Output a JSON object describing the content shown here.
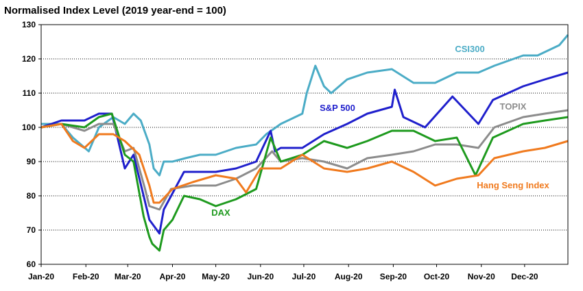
{
  "chart_data": {
    "type": "line",
    "title": "Normalised Index Level (2019 year-end = 100)",
    "xlabel": "",
    "ylabel": "",
    "ylim": [
      60,
      130
    ],
    "yticks": [
      60,
      70,
      80,
      90,
      100,
      110,
      120,
      130
    ],
    "x_tick_labels": [
      "Jan-20",
      "Feb-20",
      "Mar-20",
      "Apr-20",
      "May-20",
      "Jun-20",
      "Jul-20",
      "Aug-20",
      "Sep-20",
      "Oct-20",
      "Nov-20",
      "Dec-20"
    ],
    "grid": "horizontal-dotted",
    "legend": "direct-labels",
    "series": [
      {
        "name": "CSI300",
        "color": "#4BACC6",
        "x": [
          "2020-01-01",
          "2020-01-15",
          "2020-01-23",
          "2020-02-03",
          "2020-02-10",
          "2020-02-20",
          "2020-02-28",
          "2020-03-05",
          "2020-03-10",
          "2020-03-16",
          "2020-03-19",
          "2020-03-23",
          "2020-03-26",
          "2020-04-01",
          "2020-04-10",
          "2020-04-20",
          "2020-05-01",
          "2020-05-15",
          "2020-05-29",
          "2020-06-05",
          "2020-06-15",
          "2020-06-30",
          "2020-07-03",
          "2020-07-09",
          "2020-07-15",
          "2020-07-20",
          "2020-07-31",
          "2020-08-14",
          "2020-08-31",
          "2020-09-15",
          "2020-09-30",
          "2020-10-15",
          "2020-10-30",
          "2020-11-10",
          "2020-11-30",
          "2020-12-10",
          "2020-12-25",
          "2020-12-31"
        ],
        "values": [
          101,
          101,
          97,
          93,
          100,
          103,
          101,
          104,
          102,
          95,
          88,
          86,
          90,
          90,
          91,
          92,
          92,
          94,
          95,
          98,
          101,
          104,
          110,
          118,
          112,
          110,
          114,
          116,
          117,
          113,
          113,
          116,
          116,
          118,
          121,
          121,
          124,
          127
        ]
      },
      {
        "name": "S&P 500",
        "color": "#1F1FCC",
        "x": [
          "2020-01-01",
          "2020-01-15",
          "2020-01-31",
          "2020-02-10",
          "2020-02-19",
          "2020-02-28",
          "2020-03-05",
          "2020-03-12",
          "2020-03-16",
          "2020-03-23",
          "2020-03-26",
          "2020-04-09",
          "2020-04-20",
          "2020-05-01",
          "2020-05-15",
          "2020-05-29",
          "2020-06-08",
          "2020-06-11",
          "2020-06-15",
          "2020-06-30",
          "2020-07-15",
          "2020-07-31",
          "2020-08-14",
          "2020-08-31",
          "2020-09-02",
          "2020-09-08",
          "2020-09-23",
          "2020-10-12",
          "2020-10-30",
          "2020-11-09",
          "2020-11-30",
          "2020-12-15",
          "2020-12-31"
        ],
        "values": [
          100,
          102,
          102,
          104,
          104,
          88,
          92,
          80,
          73,
          69,
          76,
          87,
          87,
          87,
          88,
          90,
          99,
          93,
          94,
          94,
          98,
          101,
          104,
          106,
          111,
          103,
          100,
          109,
          101,
          108,
          112,
          114,
          116
        ]
      },
      {
        "name": "TOPIX",
        "color": "#8C8C8C",
        "x": [
          "2020-01-01",
          "2020-01-15",
          "2020-01-31",
          "2020-02-10",
          "2020-02-20",
          "2020-02-28",
          "2020-03-05",
          "2020-03-13",
          "2020-03-16",
          "2020-03-23",
          "2020-03-31",
          "2020-04-15",
          "2020-05-01",
          "2020-05-15",
          "2020-05-29",
          "2020-06-09",
          "2020-06-15",
          "2020-06-30",
          "2020-07-15",
          "2020-07-31",
          "2020-08-14",
          "2020-08-31",
          "2020-09-15",
          "2020-09-30",
          "2020-10-15",
          "2020-10-30",
          "2020-11-10",
          "2020-11-30",
          "2020-12-15",
          "2020-12-31"
        ],
        "values": [
          100,
          101,
          99,
          101,
          101,
          93,
          94,
          82,
          77,
          76,
          82,
          83,
          83,
          85,
          88,
          93,
          90,
          91,
          90,
          88,
          91,
          92,
          93,
          95,
          95,
          94,
          100,
          103,
          104,
          105
        ]
      },
      {
        "name": "DAX",
        "color": "#1E9A1E",
        "x": [
          "2020-01-01",
          "2020-01-15",
          "2020-01-31",
          "2020-02-10",
          "2020-02-19",
          "2020-02-28",
          "2020-03-05",
          "2020-03-12",
          "2020-03-16",
          "2020-03-18",
          "2020-03-23",
          "2020-03-26",
          "2020-04-01",
          "2020-04-09",
          "2020-04-20",
          "2020-05-01",
          "2020-05-15",
          "2020-05-29",
          "2020-06-08",
          "2020-06-15",
          "2020-06-30",
          "2020-07-15",
          "2020-07-31",
          "2020-08-14",
          "2020-08-31",
          "2020-09-15",
          "2020-09-30",
          "2020-10-15",
          "2020-10-28",
          "2020-11-09",
          "2020-11-30",
          "2020-12-15",
          "2020-12-31"
        ],
        "values": [
          100,
          101,
          100,
          103,
          104,
          92,
          90,
          74,
          68,
          66,
          64,
          70,
          73,
          80,
          79,
          77,
          79,
          82,
          97,
          90,
          92,
          96,
          94,
          96,
          99,
          99,
          96,
          97,
          86,
          97,
          101,
          102,
          103
        ]
      },
      {
        "name": "Hang Seng Index",
        "color": "#F07A1E",
        "x": [
          "2020-01-01",
          "2020-01-15",
          "2020-01-23",
          "2020-01-31",
          "2020-02-10",
          "2020-02-20",
          "2020-02-28",
          "2020-03-09",
          "2020-03-16",
          "2020-03-19",
          "2020-03-23",
          "2020-04-01",
          "2020-04-15",
          "2020-05-01",
          "2020-05-15",
          "2020-05-22",
          "2020-06-01",
          "2020-06-15",
          "2020-06-30",
          "2020-07-15",
          "2020-07-31",
          "2020-08-14",
          "2020-08-31",
          "2020-09-15",
          "2020-09-30",
          "2020-10-15",
          "2020-10-30",
          "2020-11-10",
          "2020-11-30",
          "2020-12-15",
          "2020-12-31"
        ],
        "values": [
          100,
          101,
          96,
          94,
          98,
          98,
          96,
          92,
          83,
          78,
          78,
          82,
          84,
          86,
          85,
          81,
          88,
          88,
          92,
          88,
          87,
          88,
          90,
          87,
          83,
          85,
          86,
          91,
          93,
          94,
          96
        ]
      }
    ],
    "annotations": [
      {
        "text": "CSI300",
        "series": "CSI300"
      },
      {
        "text": "S&P 500",
        "series": "S&P 500"
      },
      {
        "text": "TOPIX",
        "series": "TOPIX"
      },
      {
        "text": "DAX",
        "series": "DAX"
      },
      {
        "text": "Hang Seng Index",
        "series": "Hang Seng Index"
      }
    ]
  }
}
